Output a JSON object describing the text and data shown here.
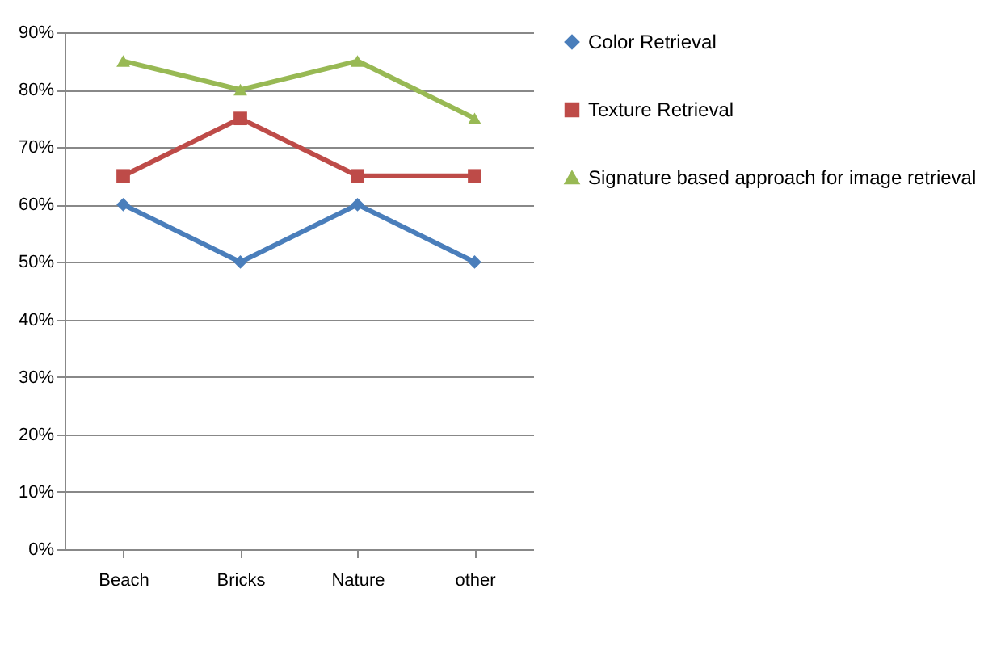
{
  "chart_data": {
    "type": "line",
    "categories": [
      "Beach",
      "Bricks",
      "Nature",
      "other"
    ],
    "series": [
      {
        "name": "Color Retrieval",
        "color": "#4a7ebb",
        "marker": "diamond",
        "values": [
          60,
          50,
          60,
          50
        ]
      },
      {
        "name": "Texture Retrieval",
        "color": "#be4b48",
        "marker": "square",
        "values": [
          65,
          75,
          65,
          65
        ]
      },
      {
        "name": "Signature based approach for image retrieval",
        "color": "#98b954",
        "marker": "triangle",
        "values": [
          85,
          80,
          85,
          75
        ]
      }
    ],
    "ylim": [
      0,
      90
    ],
    "yticks": [
      {
        "value": 0,
        "label": "0%"
      },
      {
        "value": 10,
        "label": "10%"
      },
      {
        "value": 20,
        "label": "20%"
      },
      {
        "value": 30,
        "label": "30%"
      },
      {
        "value": 40,
        "label": "40%"
      },
      {
        "value": 50,
        "label": "50%"
      },
      {
        "value": 60,
        "label": "60%"
      },
      {
        "value": 70,
        "label": "70%"
      },
      {
        "value": 80,
        "label": "80%"
      },
      {
        "value": 90,
        "label": "90%"
      }
    ],
    "grid": "y",
    "legend": "right",
    "line_style": "solid"
  }
}
